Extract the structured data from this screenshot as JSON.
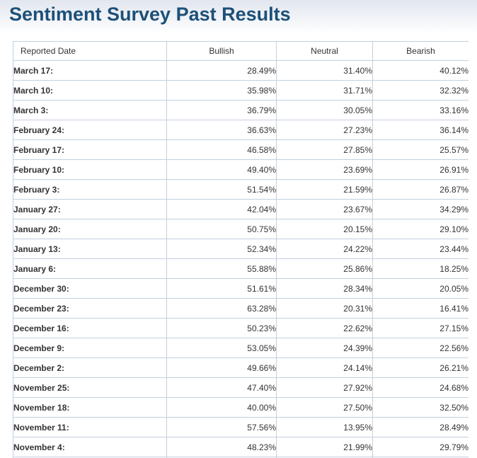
{
  "page_title": "Sentiment Survey Past Results",
  "colors": {
    "title": "#1d5078",
    "table_border": "#c2d0e0",
    "text": "#333333",
    "top_gradient_start": "#e2e6ef"
  },
  "table": {
    "columns": [
      "Reported Date",
      "Bullish",
      "Neutral",
      "Bearish"
    ],
    "rows": [
      {
        "date": "March 17:",
        "bullish": "28.49%",
        "neutral": "31.40%",
        "bearish": "40.12%"
      },
      {
        "date": "March 10:",
        "bullish": "35.98%",
        "neutral": "31.71%",
        "bearish": "32.32%"
      },
      {
        "date": "March 3:",
        "bullish": "36.79%",
        "neutral": "30.05%",
        "bearish": "33.16%"
      },
      {
        "date": "February 24:",
        "bullish": "36.63%",
        "neutral": "27.23%",
        "bearish": "36.14%"
      },
      {
        "date": "February 17:",
        "bullish": "46.58%",
        "neutral": "27.85%",
        "bearish": "25.57%"
      },
      {
        "date": "February 10:",
        "bullish": "49.40%",
        "neutral": "23.69%",
        "bearish": "26.91%"
      },
      {
        "date": "February 3:",
        "bullish": "51.54%",
        "neutral": "21.59%",
        "bearish": "26.87%"
      },
      {
        "date": "January 27:",
        "bullish": "42.04%",
        "neutral": "23.67%",
        "bearish": "34.29%"
      },
      {
        "date": "January 20:",
        "bullish": "50.75%",
        "neutral": "20.15%",
        "bearish": "29.10%"
      },
      {
        "date": "January 13:",
        "bullish": "52.34%",
        "neutral": "24.22%",
        "bearish": "23.44%"
      },
      {
        "date": "January 6:",
        "bullish": "55.88%",
        "neutral": "25.86%",
        "bearish": "18.25%"
      },
      {
        "date": "December 30:",
        "bullish": "51.61%",
        "neutral": "28.34%",
        "bearish": "20.05%"
      },
      {
        "date": "December 23:",
        "bullish": "63.28%",
        "neutral": "20.31%",
        "bearish": "16.41%"
      },
      {
        "date": "December 16:",
        "bullish": "50.23%",
        "neutral": "22.62%",
        "bearish": "27.15%"
      },
      {
        "date": "December 9:",
        "bullish": "53.05%",
        "neutral": "24.39%",
        "bearish": "22.56%"
      },
      {
        "date": "December 2:",
        "bullish": "49.66%",
        "neutral": "24.14%",
        "bearish": "26.21%"
      },
      {
        "date": "November 25:",
        "bullish": "47.40%",
        "neutral": "27.92%",
        "bearish": "24.68%"
      },
      {
        "date": "November 18:",
        "bullish": "40.00%",
        "neutral": "27.50%",
        "bearish": "32.50%"
      },
      {
        "date": "November 11:",
        "bullish": "57.56%",
        "neutral": "13.95%",
        "bearish": "28.49%"
      },
      {
        "date": "November 4:",
        "bullish": "48.23%",
        "neutral": "21.99%",
        "bearish": "29.79%"
      }
    ]
  }
}
